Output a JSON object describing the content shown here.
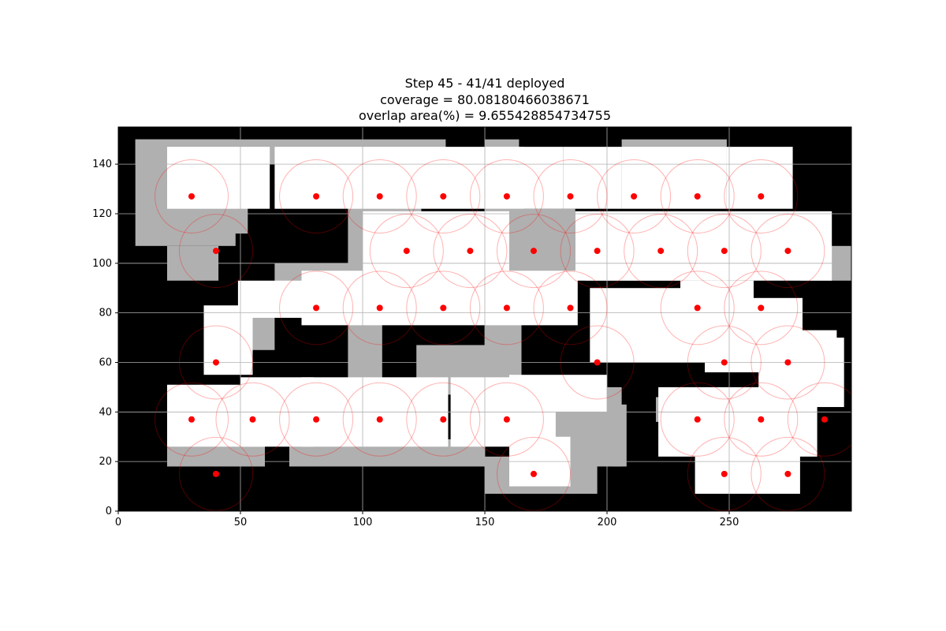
{
  "chart_data": {
    "type": "heatmap",
    "title_lines": [
      "Step 45 - 41/41 deployed",
      "coverage = 80.08180466038671",
      "overlap area(%) =  9.655428854734755"
    ],
    "xlabel": "",
    "ylabel": "",
    "xlim": [
      0,
      300
    ],
    "ylim": [
      0,
      155
    ],
    "x_ticks": [
      0,
      50,
      100,
      150,
      200,
      250
    ],
    "y_ticks": [
      0,
      20,
      40,
      60,
      80,
      100,
      120,
      140
    ],
    "grid": true,
    "sensor_radius": 15,
    "colors": {
      "obstacle": "#000000",
      "free_area": "#b0b0b0",
      "covered": "#ffffff",
      "sensor": "#ff0000",
      "range_circle": "#ff0000"
    },
    "free_area_cells": [
      [
        7,
        107,
        41,
        43
      ],
      [
        7,
        140,
        127,
        10
      ],
      [
        41,
        112,
        12,
        28
      ],
      [
        94,
        93,
        30,
        47
      ],
      [
        150,
        140,
        14,
        10
      ],
      [
        206,
        140,
        43,
        10
      ],
      [
        150,
        94,
        37,
        28
      ],
      [
        191,
        93,
        58,
        14
      ],
      [
        279,
        93,
        32,
        14
      ],
      [
        20,
        93,
        21,
        14
      ],
      [
        64,
        85,
        35,
        15
      ],
      [
        35,
        65,
        29,
        15
      ],
      [
        94,
        47,
        14,
        46
      ],
      [
        122,
        47,
        28,
        20
      ],
      [
        150,
        47,
        15,
        47
      ],
      [
        178,
        18,
        28,
        32
      ],
      [
        20,
        18,
        40,
        22
      ],
      [
        150,
        7,
        46,
        15
      ],
      [
        70,
        18,
        80,
        11
      ],
      [
        202,
        18,
        6,
        25
      ],
      [
        220,
        36,
        14,
        10
      ]
    ],
    "white_cells": [
      [
        20,
        122,
        42,
        25
      ],
      [
        64,
        122,
        56,
        25
      ],
      [
        120,
        122,
        46,
        25
      ],
      [
        150,
        122,
        32,
        25
      ],
      [
        182,
        122,
        24,
        25
      ],
      [
        206,
        122,
        43,
        25
      ],
      [
        249,
        122,
        27,
        25
      ],
      [
        100,
        93,
        60,
        28
      ],
      [
        187,
        93,
        105,
        28
      ],
      [
        49,
        78,
        40,
        15
      ],
      [
        75,
        75,
        55,
        22
      ],
      [
        130,
        75,
        58,
        22
      ],
      [
        193,
        60,
        50,
        30
      ],
      [
        240,
        56,
        40,
        30
      ],
      [
        262,
        42,
        35,
        28
      ],
      [
        160,
        40,
        40,
        15
      ],
      [
        35,
        55,
        20,
        28
      ],
      [
        20,
        26,
        40,
        25
      ],
      [
        50,
        26,
        30,
        28
      ],
      [
        75,
        26,
        60,
        28
      ],
      [
        136,
        26,
        40,
        28
      ],
      [
        157,
        27,
        22,
        16
      ],
      [
        221,
        22,
        65,
        28
      ],
      [
        160,
        10,
        25,
        20
      ],
      [
        236,
        7,
        28,
        24
      ],
      [
        262,
        7,
        17,
        24
      ],
      [
        230,
        75,
        30,
        18
      ],
      [
        272,
        53,
        22,
        20
      ]
    ],
    "sensors": [
      {
        "x": 30,
        "y": 127
      },
      {
        "x": 81,
        "y": 127
      },
      {
        "x": 107,
        "y": 127
      },
      {
        "x": 133,
        "y": 127
      },
      {
        "x": 159,
        "y": 127
      },
      {
        "x": 185,
        "y": 127
      },
      {
        "x": 211,
        "y": 127
      },
      {
        "x": 237,
        "y": 127
      },
      {
        "x": 263,
        "y": 127
      },
      {
        "x": 40,
        "y": 105
      },
      {
        "x": 118,
        "y": 105
      },
      {
        "x": 144,
        "y": 105
      },
      {
        "x": 170,
        "y": 105
      },
      {
        "x": 196,
        "y": 105
      },
      {
        "x": 222,
        "y": 105
      },
      {
        "x": 248,
        "y": 105
      },
      {
        "x": 274,
        "y": 105
      },
      {
        "x": 81,
        "y": 82
      },
      {
        "x": 107,
        "y": 82
      },
      {
        "x": 133,
        "y": 82
      },
      {
        "x": 159,
        "y": 82
      },
      {
        "x": 185,
        "y": 82
      },
      {
        "x": 237,
        "y": 82
      },
      {
        "x": 263,
        "y": 82
      },
      {
        "x": 40,
        "y": 60
      },
      {
        "x": 196,
        "y": 60
      },
      {
        "x": 248,
        "y": 60
      },
      {
        "x": 274,
        "y": 60
      },
      {
        "x": 30,
        "y": 37
      },
      {
        "x": 55,
        "y": 37
      },
      {
        "x": 81,
        "y": 37
      },
      {
        "x": 107,
        "y": 37
      },
      {
        "x": 133,
        "y": 37
      },
      {
        "x": 159,
        "y": 37
      },
      {
        "x": 237,
        "y": 37
      },
      {
        "x": 263,
        "y": 37
      },
      {
        "x": 289,
        "y": 37
      },
      {
        "x": 40,
        "y": 15
      },
      {
        "x": 170,
        "y": 15
      },
      {
        "x": 248,
        "y": 15
      },
      {
        "x": 274,
        "y": 15
      }
    ]
  }
}
